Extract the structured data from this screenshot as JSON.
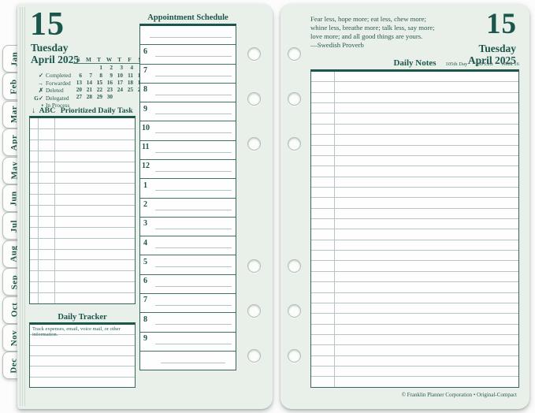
{
  "colors": {
    "teal_dark": "#1b564c",
    "teal_text": "#2a5d54",
    "line_light": "#b5c4c7",
    "line_dark": "#417068",
    "page_bg": "#e9efe9",
    "paper": "#fdfefd"
  },
  "tabs": [
    "Jan",
    "Feb",
    "Mar",
    "Apr",
    "May",
    "Jun",
    "Jul",
    "Aug",
    "Sep",
    "Oct",
    "Nov",
    "Dec"
  ],
  "left_page": {
    "date": {
      "day": "15",
      "weekday": "Tuesday",
      "month_year": "April 2025"
    },
    "legend": [
      {
        "symbol": "✓",
        "label": "Completed"
      },
      {
        "symbol": "→",
        "label": "Forwarded"
      },
      {
        "symbol": "✗",
        "label": "Deleted"
      },
      {
        "symbol": "G✓",
        "label": "Delegated"
      },
      {
        "symbol": "•",
        "label": "In Process"
      }
    ],
    "mini_calendar": {
      "day_headers": [
        "S",
        "M",
        "T",
        "W",
        "T",
        "F",
        "S"
      ],
      "weeks": [
        [
          "",
          "",
          "1",
          "2",
          "3",
          "4",
          "5"
        ],
        [
          "6",
          "7",
          "8",
          "9",
          "10",
          "11",
          "12"
        ],
        [
          "13",
          "14",
          "15",
          "16",
          "17",
          "18",
          "19"
        ],
        [
          "20",
          "21",
          "22",
          "23",
          "24",
          "25",
          "26"
        ],
        [
          "27",
          "28",
          "29",
          "30",
          "",
          "",
          ""
        ]
      ],
      "highlight_day": "15"
    },
    "task_list": {
      "arrow": "↓",
      "abc": "ABC",
      "title": "Prioritized Daily Task List",
      "row_count": 17
    },
    "daily_tracker": {
      "title": "Daily Tracker",
      "hint": "Track expenses, email, voice mail, or other information.",
      "row_count": 6
    },
    "appointment_schedule": {
      "title": "Appointment Schedule",
      "hours": [
        "6",
        "7",
        "8",
        "9",
        "10",
        "11",
        "12",
        "1",
        "2",
        "3",
        "4",
        "5",
        "6",
        "7",
        "8",
        "9"
      ]
    }
  },
  "right_page": {
    "quote": {
      "lines": [
        "Fear less, hope more; eat less, chew more;",
        "whine less, breathe more; talk less, say more;",
        "love more; and all good things are yours."
      ],
      "attribution": "—Swedish Proverb"
    },
    "date": {
      "day": "15",
      "weekday": "Tuesday",
      "month_year": "April 2025"
    },
    "daily_notes": {
      "title": "Daily Notes",
      "day_of_year": "105th Day",
      "days_left": "260 Left",
      "week": "Week 16",
      "row_count": 30
    },
    "footer": "© Franklin Planner Corporation • Original-Compact"
  }
}
